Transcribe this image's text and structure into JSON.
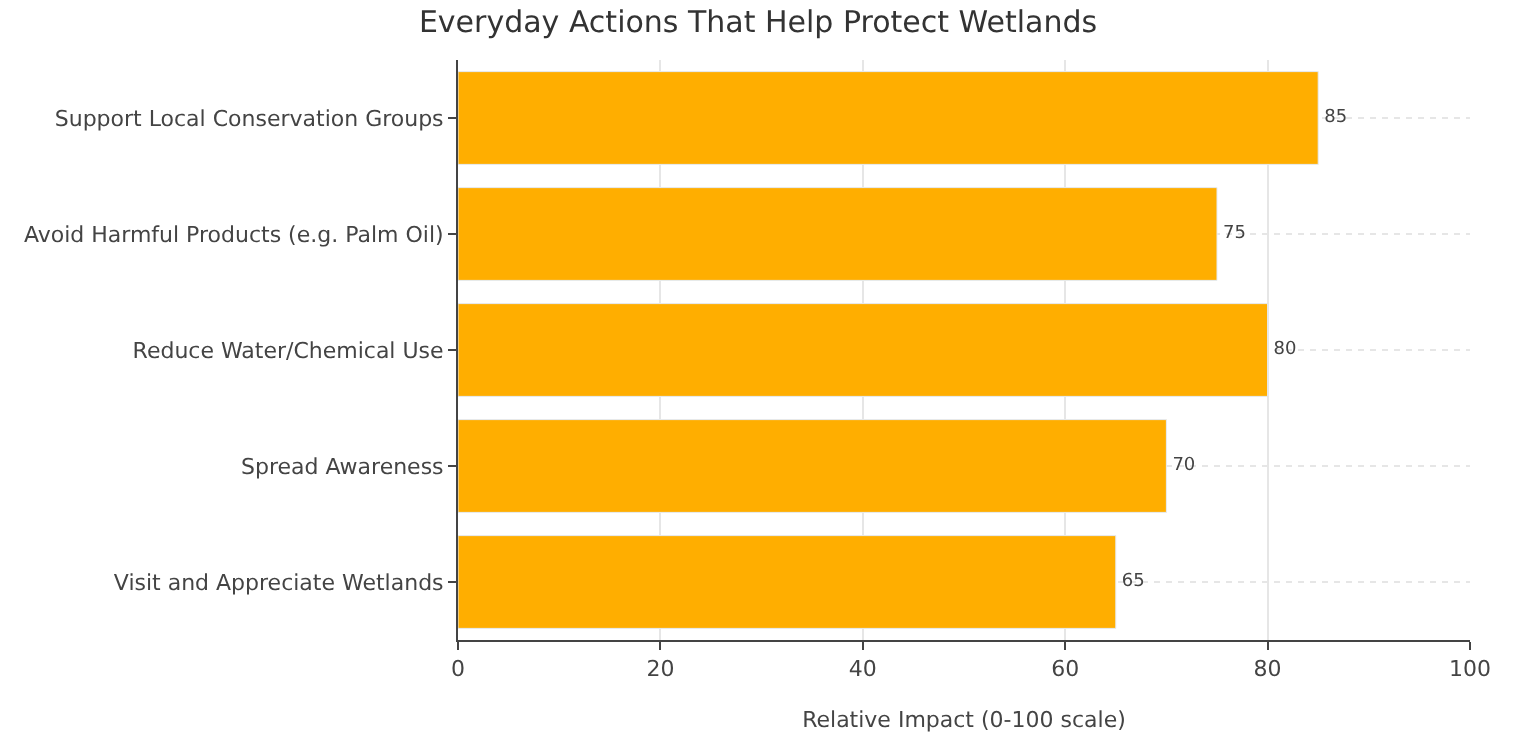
{
  "chart_data": {
    "type": "bar",
    "orientation": "horizontal",
    "title": "Everyday Actions That Help Protect Wetlands",
    "xlabel": "Relative Impact (0-100 scale)",
    "categories": [
      "Support Local Conservation Groups",
      "Avoid Harmful Products (e.g. Palm Oil)",
      "Reduce Water/Chemical Use",
      "Spread Awareness",
      "Visit and Appreciate Wetlands"
    ],
    "values": [
      85,
      75,
      80,
      70,
      65
    ],
    "color": "#ffae00",
    "xlim": [
      0,
      100
    ],
    "xticks": [
      0,
      20,
      40,
      60,
      80,
      100
    ],
    "grid": true,
    "data_labels": true
  }
}
